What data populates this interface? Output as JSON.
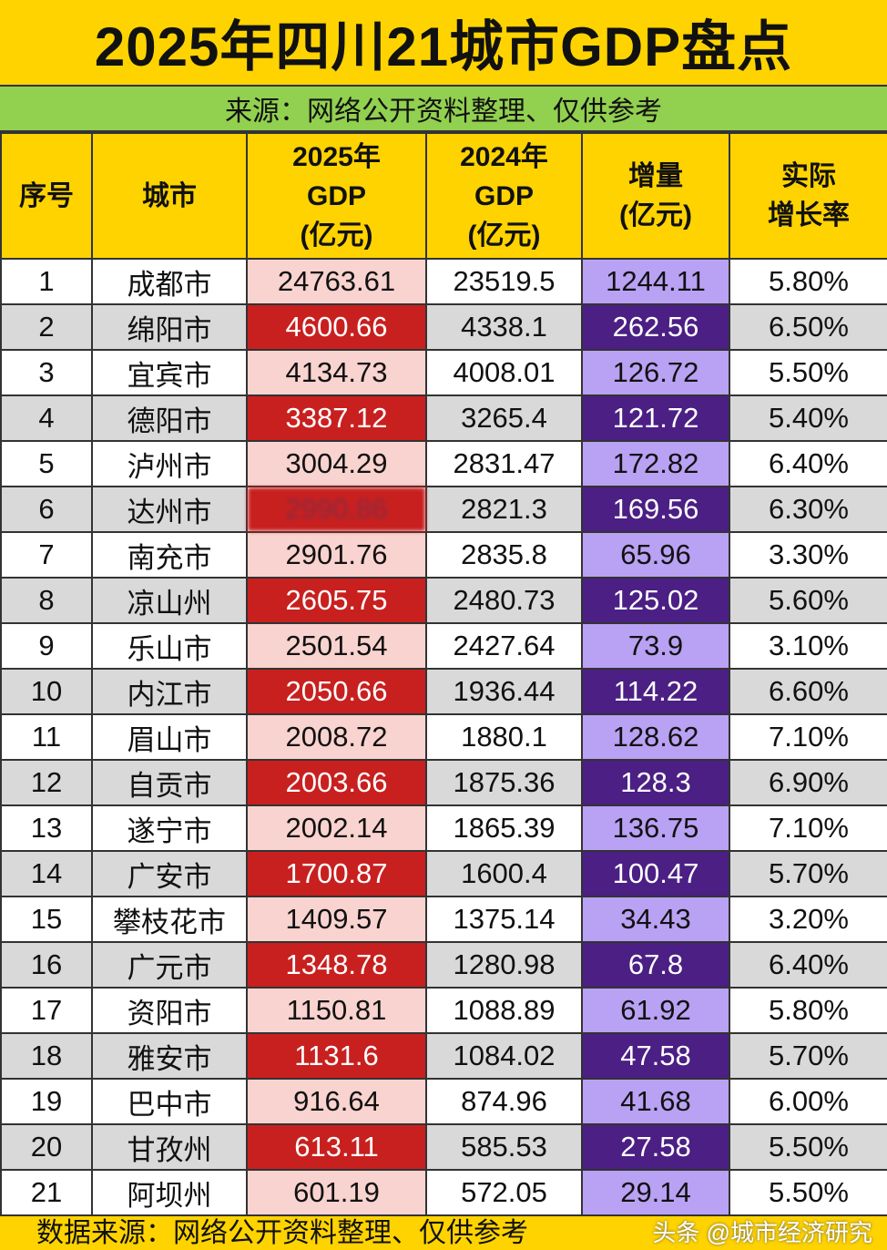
{
  "title": "2025年四川21城市GDP盘点",
  "subtitle": "来源：网络公开资料整理、仅供参考",
  "headers": [
    "序号",
    "城市",
    "2025年\nGDP\n(亿元)",
    "2024年\nGDP\n(亿元)",
    "增量\n(亿元)",
    "实际\n增长率"
  ],
  "rows": [
    [
      "1",
      "成都市",
      "24763.61",
      "23519.5",
      "1244.11",
      "5.80%"
    ],
    [
      "2",
      "绵阳市",
      "4600.66",
      "4338.1",
      "262.56",
      "6.50%"
    ],
    [
      "3",
      "宜宾市",
      "4134.73",
      "4008.01",
      "126.72",
      "5.50%"
    ],
    [
      "4",
      "德阳市",
      "3387.12",
      "3265.4",
      "121.72",
      "5.40%"
    ],
    [
      "5",
      "泸州市",
      "3004.29",
      "2831.47",
      "172.82",
      "6.40%"
    ],
    [
      "6",
      "达州市",
      "2990.86",
      "2821.3",
      "169.56",
      "6.30%"
    ],
    [
      "7",
      "南充市",
      "2901.76",
      "2835.8",
      "65.96",
      "3.30%"
    ],
    [
      "8",
      "凉山州",
      "2605.75",
      "2480.73",
      "125.02",
      "5.60%"
    ],
    [
      "9",
      "乐山市",
      "2501.54",
      "2427.64",
      "73.9",
      "3.10%"
    ],
    [
      "10",
      "内江市",
      "2050.66",
      "1936.44",
      "114.22",
      "6.60%"
    ],
    [
      "11",
      "眉山市",
      "2008.72",
      "1880.1",
      "128.62",
      "7.10%"
    ],
    [
      "12",
      "自贡市",
      "2003.66",
      "1875.36",
      "128.3",
      "6.90%"
    ],
    [
      "13",
      "遂宁市",
      "2002.14",
      "1865.39",
      "136.75",
      "7.10%"
    ],
    [
      "14",
      "广安市",
      "1700.87",
      "1600.4",
      "100.47",
      "5.70%"
    ],
    [
      "15",
      "攀枝花市",
      "1409.57",
      "1375.14",
      "34.43",
      "3.20%"
    ],
    [
      "16",
      "广元市",
      "1348.78",
      "1280.98",
      "67.8",
      "6.40%"
    ],
    [
      "17",
      "资阳市",
      "1150.81",
      "1088.89",
      "61.92",
      "5.80%"
    ],
    [
      "18",
      "雅安市",
      "1131.6",
      "1084.02",
      "47.58",
      "5.70%"
    ],
    [
      "19",
      "巴中市",
      "916.64",
      "874.96",
      "41.68",
      "6.00%"
    ],
    [
      "20",
      "甘孜州",
      "613.11",
      "585.53",
      "27.58",
      "5.50%"
    ],
    [
      "21",
      "阿坝州",
      "601.19",
      "572.05",
      "29.14",
      "5.50%"
    ]
  ],
  "footer": "数据来源：网络公开资料整理、仅供参考",
  "watermark": "头条 @城市经济研究",
  "colors": {
    "yellow": "#FFD300",
    "green": "#92D050",
    "red": "#C8201F",
    "pink": "#F9D3CF",
    "purple_dark": "#4B1F84",
    "purple_light": "#B9A1F4"
  }
}
